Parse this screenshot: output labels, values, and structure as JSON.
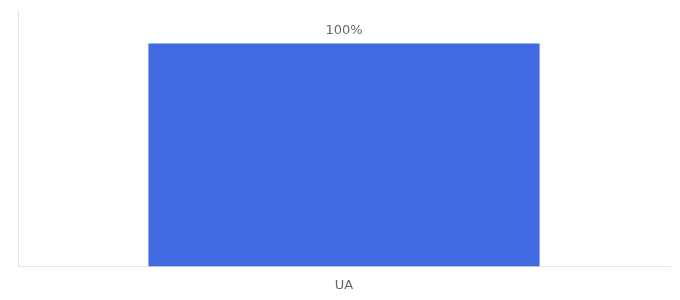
{
  "chart_data": {
    "type": "bar",
    "categories": [
      "UA"
    ],
    "values": [
      100
    ],
    "value_labels": [
      "100%"
    ],
    "color": "#4169E1",
    "ylim": [
      0,
      115
    ],
    "grid": false,
    "data_labels": true,
    "tick_labels": "x"
  }
}
